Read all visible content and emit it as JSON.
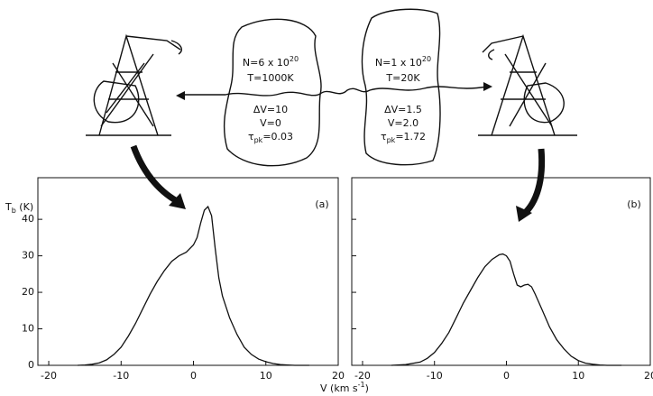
{
  "chart_data": [
    {
      "type": "line",
      "panel_label": "(a)",
      "y_label": {
        "text": "T",
        "sub": "b",
        "rest": " (K)"
      },
      "x_label": {
        "text": "V (km s",
        "sup": "-1",
        "rest": ")"
      },
      "xlim": [
        -21.5,
        20
      ],
      "ylim": [
        0,
        51.4
      ],
      "xticks": [
        -20,
        -10,
        0,
        10,
        20
      ],
      "yticks": [
        0,
        10,
        20,
        30,
        40
      ],
      "ytick_labels": true,
      "series": [
        {
          "color": "#111111",
          "x": [
            -16,
            -15,
            -14,
            -13,
            -12,
            -11,
            -10,
            -9,
            -8,
            -7,
            -6,
            -5,
            -4,
            -3,
            -2,
            -1,
            0,
            0.5,
            1,
            1.5,
            2,
            2.5,
            3,
            3.5,
            4,
            5,
            6,
            7,
            8,
            9,
            10,
            11,
            12,
            13,
            14,
            16
          ],
          "values": [
            0,
            0.1,
            0.3,
            0.7,
            1.5,
            3,
            5,
            8,
            11.5,
            15.5,
            19.5,
            23,
            26,
            28.5,
            30,
            31,
            33,
            35,
            39,
            42.5,
            43.5,
            41,
            32,
            24,
            19,
            13,
            8.5,
            5,
            3,
            1.7,
            1,
            0.5,
            0.2,
            0.1,
            0,
            0
          ]
        }
      ]
    },
    {
      "type": "line",
      "panel_label": "(b)",
      "xlim": [
        -21.5,
        20
      ],
      "ylim": [
        0,
        51.4
      ],
      "xticks": [
        -20,
        -10,
        0,
        10,
        20
      ],
      "yticks": [
        0,
        10,
        20,
        30,
        40
      ],
      "ytick_labels": false,
      "series": [
        {
          "color": "#111111",
          "x": [
            -16,
            -14,
            -12,
            -11,
            -10,
            -9,
            -8,
            -7,
            -6,
            -5,
            -4,
            -3,
            -2,
            -1,
            -0.5,
            0,
            0.5,
            1,
            1.5,
            2,
            2.5,
            3,
            3.5,
            4,
            5,
            6,
            7,
            8,
            9,
            10,
            11,
            12,
            13,
            14,
            16
          ],
          "values": [
            0,
            0.2,
            0.9,
            1.9,
            3.5,
            6,
            9,
            13,
            17,
            20.5,
            24,
            27,
            29,
            30.3,
            30.5,
            30,
            28.5,
            25,
            22,
            21.5,
            22,
            22.2,
            21.5,
            19.5,
            15,
            10.5,
            7,
            4.5,
            2.5,
            1.3,
            0.6,
            0.3,
            0.1,
            0,
            0
          ]
        }
      ]
    }
  ],
  "diagram": {
    "cloud_1": {
      "n": {
        "text": "N=6 x 10",
        "sup": "20"
      },
      "t": "T=1000K",
      "dv": "ΔV=10",
      "v": "V=0",
      "tau": {
        "text": "τ",
        "sub": "pk",
        "rest": "=0.03"
      }
    },
    "cloud_2": {
      "n": {
        "text": "N=1 x 10",
        "sup": "20"
      },
      "t": "T=20K",
      "dv": "ΔV=1.5",
      "v": "V=2.0",
      "tau": {
        "text": "τ",
        "sub": "pk",
        "rest": "=1.72"
      }
    }
  }
}
